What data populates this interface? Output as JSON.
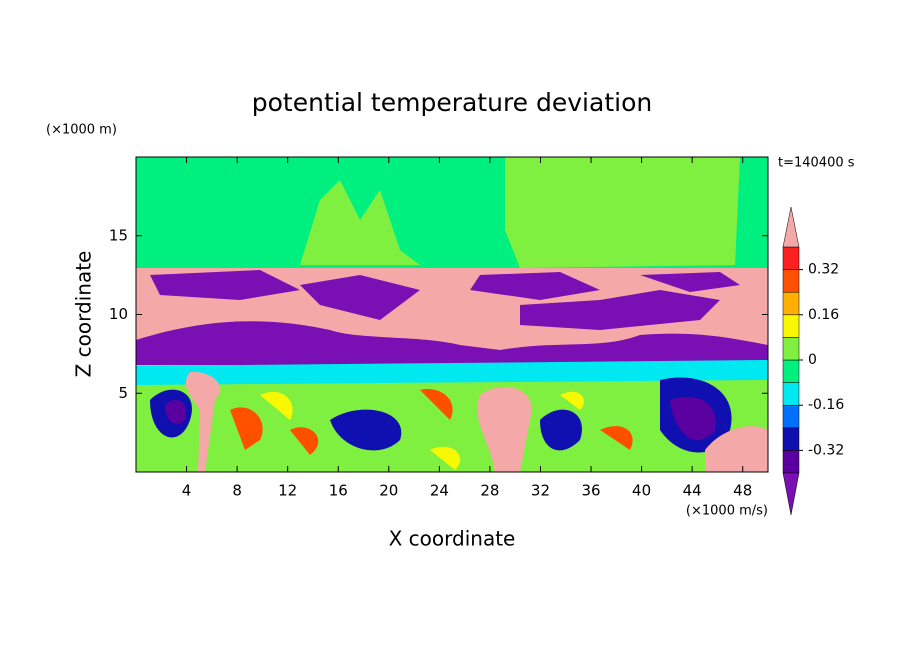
{
  "chart_data": {
    "type": "contourf",
    "title": "potential temperature deviation",
    "subtitle": "t=140400 s",
    "x_label": "X coordinate",
    "y_label": "Z coordinate",
    "x_unit": "(×1000 m/s)",
    "y_unit": "(×1000 m)",
    "xlim": [
      0,
      50
    ],
    "ylim": [
      0,
      20
    ],
    "xticks": [
      4,
      8,
      12,
      16,
      20,
      24,
      28,
      32,
      36,
      40,
      44,
      48
    ],
    "yticks": [
      5,
      10,
      15
    ],
    "levels": [
      -0.4,
      -0.32,
      -0.24,
      -0.16,
      -0.08,
      0,
      0.08,
      0.16,
      0.24,
      0.32,
      0.4
    ],
    "colors": [
      "#7a10b4",
      "#5a00a0",
      "#1010b0",
      "#0070ff",
      "#00e8f0",
      "#00f080",
      "#80f040",
      "#f8f800",
      "#ffb000",
      "#ff5000",
      "#ff2020",
      "#f4a8a8"
    ],
    "colorbar_ticks": [
      -0.32,
      -0.16,
      0,
      0.16,
      0.32
    ]
  }
}
